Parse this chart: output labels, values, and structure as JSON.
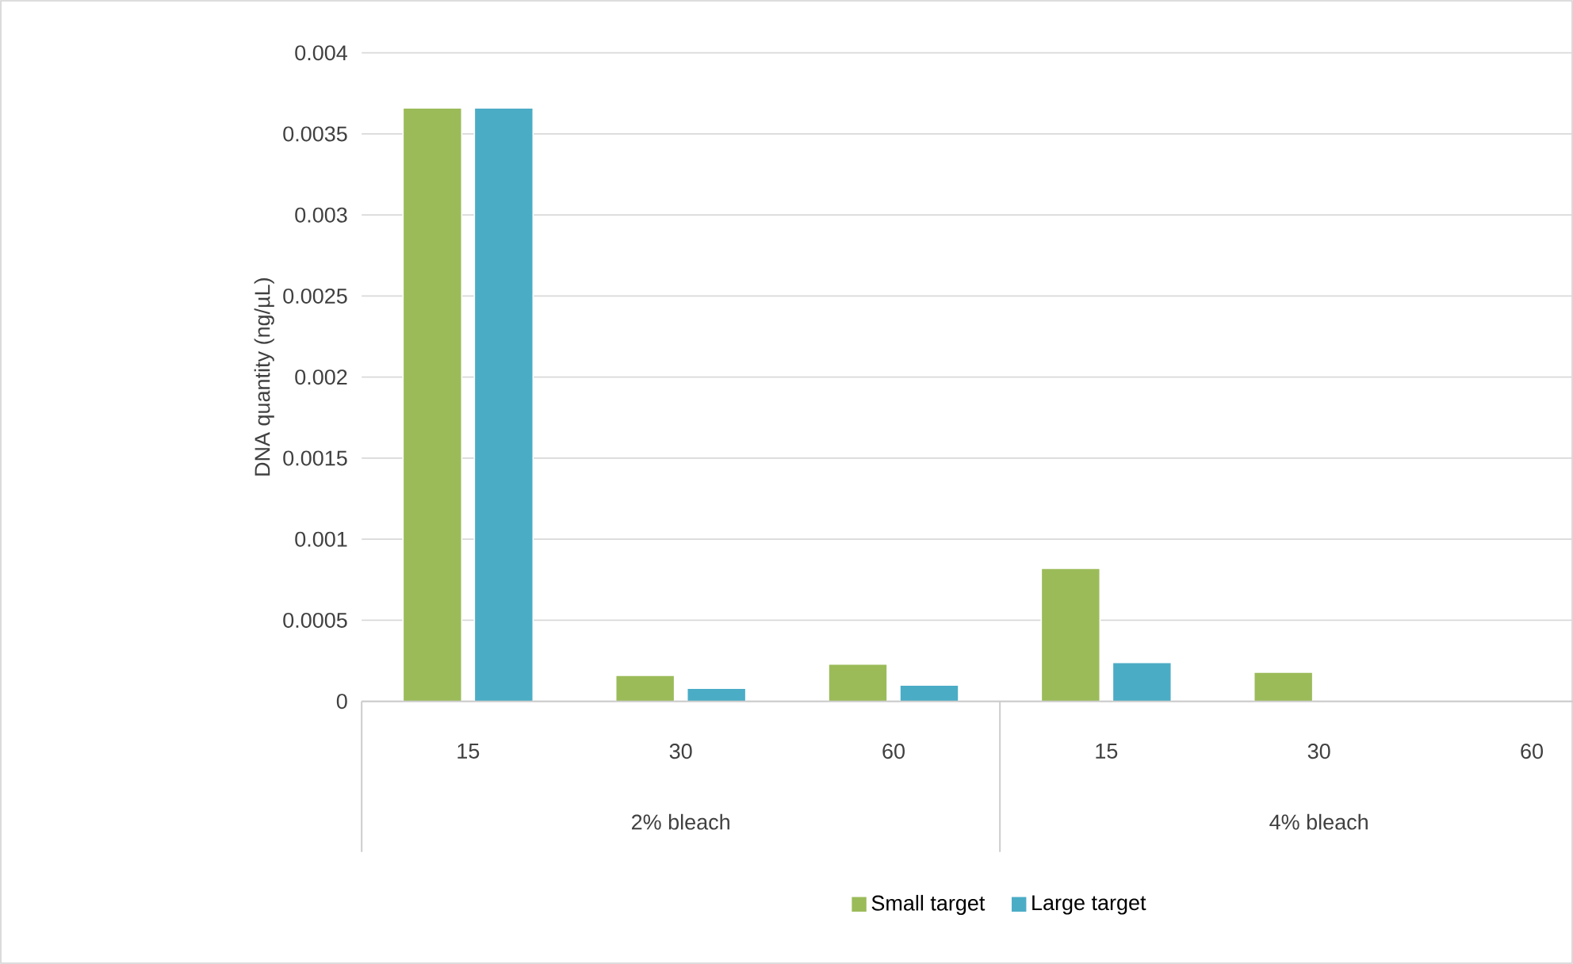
{
  "chart_data": {
    "type": "bar",
    "ylabel": "DNA quantity (ng/µL)",
    "categories": [
      "15",
      "30",
      "60",
      "15",
      "30",
      "60"
    ],
    "series": [
      {
        "name": "Small target",
        "color": "#9bbb59",
        "values": [
          0.00366,
          0.00016,
          0.00023,
          0.00082,
          0.00018,
          null
        ]
      },
      {
        "name": "Large target",
        "color": "#4bacc6",
        "values": [
          0.00366,
          8e-05,
          0.0001,
          0.00024,
          null,
          null
        ]
      }
    ],
    "ylim": [
      0,
      0.004
    ],
    "yticks": [
      0,
      0.0005,
      0.001,
      0.0015,
      0.002,
      0.0025,
      0.003,
      0.0035,
      0.004
    ],
    "annotations": [
      "2% bleach",
      "4% bleach"
    ],
    "grid": "y",
    "legend": "bottom"
  }
}
